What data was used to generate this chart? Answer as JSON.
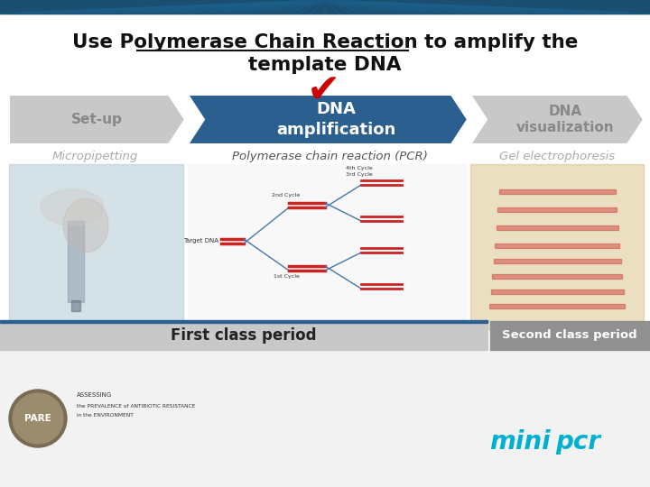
{
  "title_line1": "Use Polymerase Chain Reaction to amplify the",
  "title_line2": "template DNA",
  "step1_label": "Set-up",
  "step2_label": "DNA\namplification",
  "step3_label": "DNA\nvisualization",
  "sub1": "Micropipetting",
  "sub2": "Polymerase chain reaction (PCR)",
  "sub3": "Gel electrophoresis",
  "arrow_active_color": "#2a5f8f",
  "arrow_inactive_color": "#c8c8c8",
  "arrow_active_text": "#ffffff",
  "arrow_inactive_text": "#888888",
  "first_class_text": "First class period",
  "second_class_text": "Second class period",
  "first_class_bg": "#c8c8c8",
  "second_class_bg": "#909090",
  "checkmark_color": "#cc0000",
  "top_banner_color": "#1a4f72",
  "background": "#ffffff",
  "footer_bg": "#f5f5f5",
  "blue_line_color": "#2a5f8f"
}
